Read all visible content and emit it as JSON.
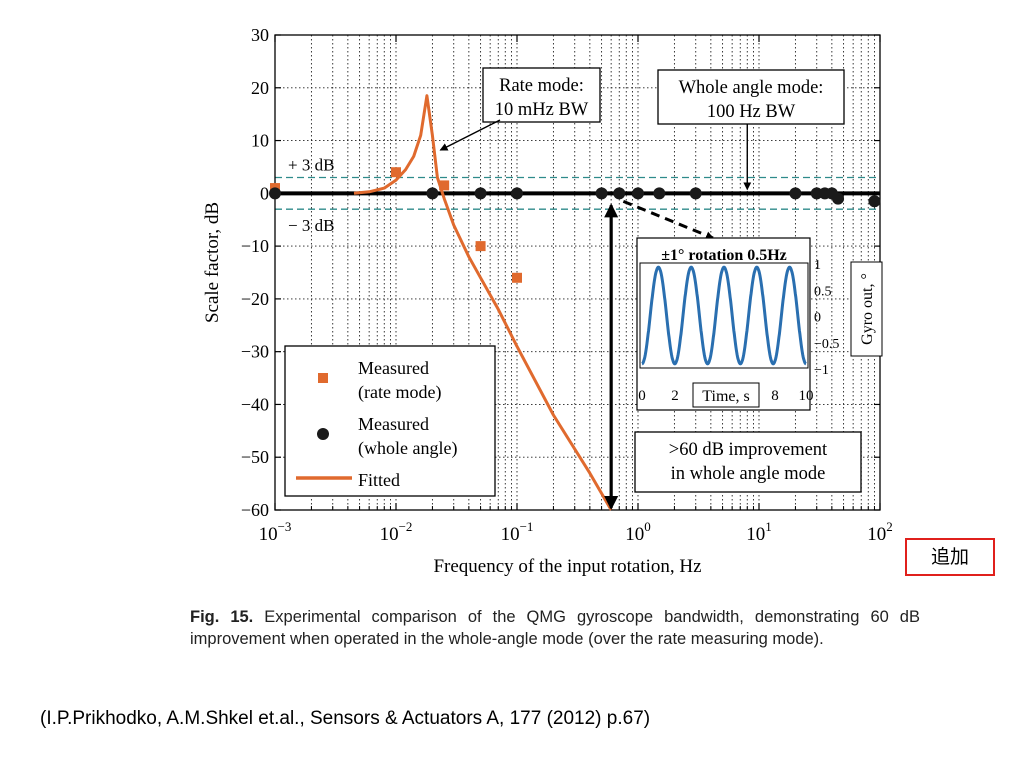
{
  "chart_data": {
    "type": "line",
    "x_scale": "log",
    "xlim": [
      0.001,
      100
    ],
    "ylim": [
      -60,
      30
    ],
    "x_ticks": [
      0.001,
      0.01,
      0.1,
      1,
      10,
      100
    ],
    "x_tick_labels": [
      [
        "10",
        "−3"
      ],
      [
        "10",
        "−2"
      ],
      [
        "10",
        "−1"
      ],
      [
        "10",
        "0"
      ],
      [
        "10",
        "1"
      ],
      [
        "10",
        "2"
      ]
    ],
    "y_ticks": [
      30,
      20,
      10,
      0,
      -10,
      -20,
      -30,
      -40,
      -50,
      -60
    ],
    "y_tick_labels": [
      "30",
      "20",
      "10",
      "0",
      "−10",
      "−20",
      "−30",
      "−40",
      "−50",
      "−60"
    ],
    "xlabel": "Frequency of the input rotation, Hz",
    "ylabel": "Scale factor, dB",
    "grid": true,
    "reference_lines": [
      {
        "y": 3,
        "label": "+ 3 dB",
        "color": "#2e8b8b",
        "style": "dashed"
      },
      {
        "y": -3,
        "label": "− 3 dB",
        "color": "#2e8b8b",
        "style": "dashed"
      },
      {
        "y": 0,
        "color": "#000000",
        "style": "solid-thick"
      }
    ],
    "series": [
      {
        "name": "Measured (rate mode)",
        "kind": "scatter",
        "marker": "square",
        "color": "#e06a2e",
        "points": [
          [
            0.001,
            1
          ],
          [
            0.01,
            4
          ],
          [
            0.025,
            1.5
          ],
          [
            0.05,
            -10
          ],
          [
            0.1,
            -16
          ]
        ]
      },
      {
        "name": "Measured (whole angle)",
        "kind": "scatter",
        "marker": "circle",
        "color": "#1a1a1a",
        "points": [
          [
            0.001,
            0
          ],
          [
            0.02,
            0
          ],
          [
            0.05,
            0
          ],
          [
            0.1,
            0
          ],
          [
            0.5,
            0
          ],
          [
            0.7,
            0
          ],
          [
            1,
            0
          ],
          [
            1.5,
            0
          ],
          [
            3,
            0
          ],
          [
            20,
            0
          ],
          [
            30,
            0
          ],
          [
            35,
            0
          ],
          [
            40,
            0
          ],
          [
            45,
            -1
          ],
          [
            90,
            -1.5
          ]
        ]
      },
      {
        "name": "Fitted",
        "kind": "line",
        "color": "#e06a2e",
        "points": [
          [
            0.0045,
            0
          ],
          [
            0.006,
            0.3
          ],
          [
            0.008,
            1
          ],
          [
            0.01,
            2.5
          ],
          [
            0.012,
            4.5
          ],
          [
            0.014,
            7
          ],
          [
            0.016,
            11
          ],
          [
            0.018,
            18.5
          ],
          [
            0.02,
            11
          ],
          [
            0.022,
            3
          ],
          [
            0.025,
            -1
          ],
          [
            0.03,
            -6
          ],
          [
            0.04,
            -12
          ],
          [
            0.05,
            -16
          ],
          [
            0.07,
            -22
          ],
          [
            0.1,
            -29
          ],
          [
            0.2,
            -42
          ],
          [
            0.4,
            -53
          ],
          [
            0.6,
            -60
          ]
        ]
      }
    ],
    "legend": {
      "placement": "lower-left",
      "entries": [
        {
          "label_lines": [
            "Measured",
            "(rate mode)"
          ],
          "marker": "square",
          "color": "#e06a2e"
        },
        {
          "label_lines": [
            "Measured",
            "(whole angle)"
          ],
          "marker": "circle",
          "color": "#1a1a1a"
        },
        {
          "label_lines": [
            "Fitted"
          ],
          "marker": "line",
          "color": "#e06a2e"
        }
      ]
    },
    "annotations": [
      {
        "lines": [
          "Rate mode:",
          "10 mHz BW"
        ],
        "points_to": [
          0.02,
          8
        ]
      },
      {
        "lines": [
          "Whole angle mode:",
          "100 Hz BW"
        ],
        "points_to": [
          8,
          0
        ]
      },
      {
        "lines": [
          ">60 dB improvement",
          "in whole angle mode"
        ],
        "bracket_x": 0.6,
        "bracket_from": 0,
        "bracket_to": -60
      }
    ],
    "inset": {
      "title": "±1° rotation 0.5Hz",
      "xlabel": "Time, s",
      "ylabel": "Gyro out, °",
      "x_tick_labels": [
        "0",
        "2",
        "8",
        "10"
      ],
      "y_tick_labels": [
        "1",
        "0.5",
        "0",
        "−0.5",
        "−1"
      ],
      "xlim": [
        0,
        10
      ],
      "ylim": [
        -1,
        1
      ],
      "signal": {
        "type": "sine",
        "amplitude": 1,
        "frequency_hz": 0.5,
        "color": "#2a6fb0"
      }
    }
  },
  "caption": {
    "label": "Fig. 15.",
    "text": "Experimental comparison of the QMG gyroscope bandwidth, demonstrating 60 dB improvement when operated in the whole-angle mode (over the rate measuring mode)."
  },
  "citation": "(I.P.Prikhodko, A.M.Shkel et.al., Sensors & Actuators A, 177 (2012) p.67)",
  "added_note": "追加"
}
